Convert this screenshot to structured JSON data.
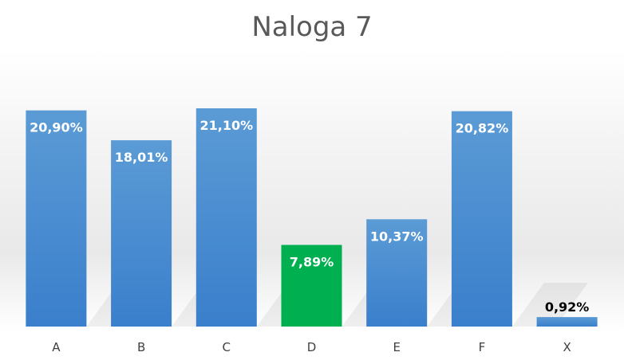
{
  "chart_data": {
    "type": "bar",
    "title": "Naloga 7",
    "xlabel": "",
    "ylabel": "",
    "categories": [
      "A",
      "B",
      "C",
      "D",
      "E",
      "F",
      "X"
    ],
    "values": [
      20.9,
      18.01,
      21.1,
      7.89,
      10.37,
      20.82,
      0.92
    ],
    "data_labels": [
      "20,90%",
      "18,01%",
      "21,10%",
      "7,89%",
      "10,37%",
      "20,82%",
      "0,92%"
    ],
    "unit": "%",
    "ylim": [
      0,
      21.1
    ],
    "grid": false,
    "legend": "none",
    "colors": {
      "default_bar": "#4a90d9",
      "highlight_bar": "#00b050",
      "label_inside": "#ffffff",
      "label_outside": "#000000"
    },
    "highlight_index": 3
  }
}
